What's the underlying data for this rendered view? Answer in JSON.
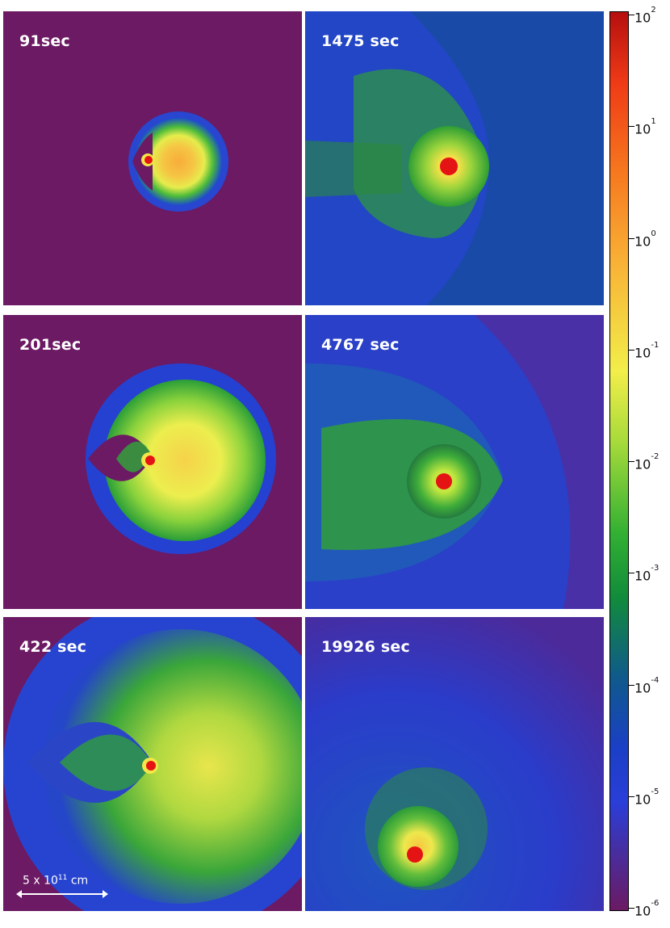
{
  "panels": [
    {
      "id": "p1",
      "label": "91sec"
    },
    {
      "id": "p2",
      "label": "1475 sec"
    },
    {
      "id": "p3",
      "label": "201sec"
    },
    {
      "id": "p4",
      "label": "4767 sec"
    },
    {
      "id": "p5",
      "label": "422 sec"
    },
    {
      "id": "p6",
      "label": "19926 sec"
    }
  ],
  "scale": {
    "label": "5 x 10",
    "exponent": "11",
    "unit": " cm"
  },
  "colorbar": {
    "ticks": [
      {
        "base": "10",
        "exp": "2"
      },
      {
        "base": "10",
        "exp": "1"
      },
      {
        "base": "10",
        "exp": "0"
      },
      {
        "base": "10",
        "exp": "-1"
      },
      {
        "base": "10",
        "exp": "-2"
      },
      {
        "base": "10",
        "exp": "-3"
      },
      {
        "base": "10",
        "exp": "-4"
      },
      {
        "base": "10",
        "exp": "-5"
      },
      {
        "base": "10",
        "exp": "-6"
      }
    ]
  },
  "colors": {
    "background_purple": "#6b1a63",
    "deep_blue": "#1e3fd0",
    "green": "#2fa833",
    "yellow": "#f2ee4a",
    "orange": "#f6a030",
    "red_core": "#e51414"
  }
}
